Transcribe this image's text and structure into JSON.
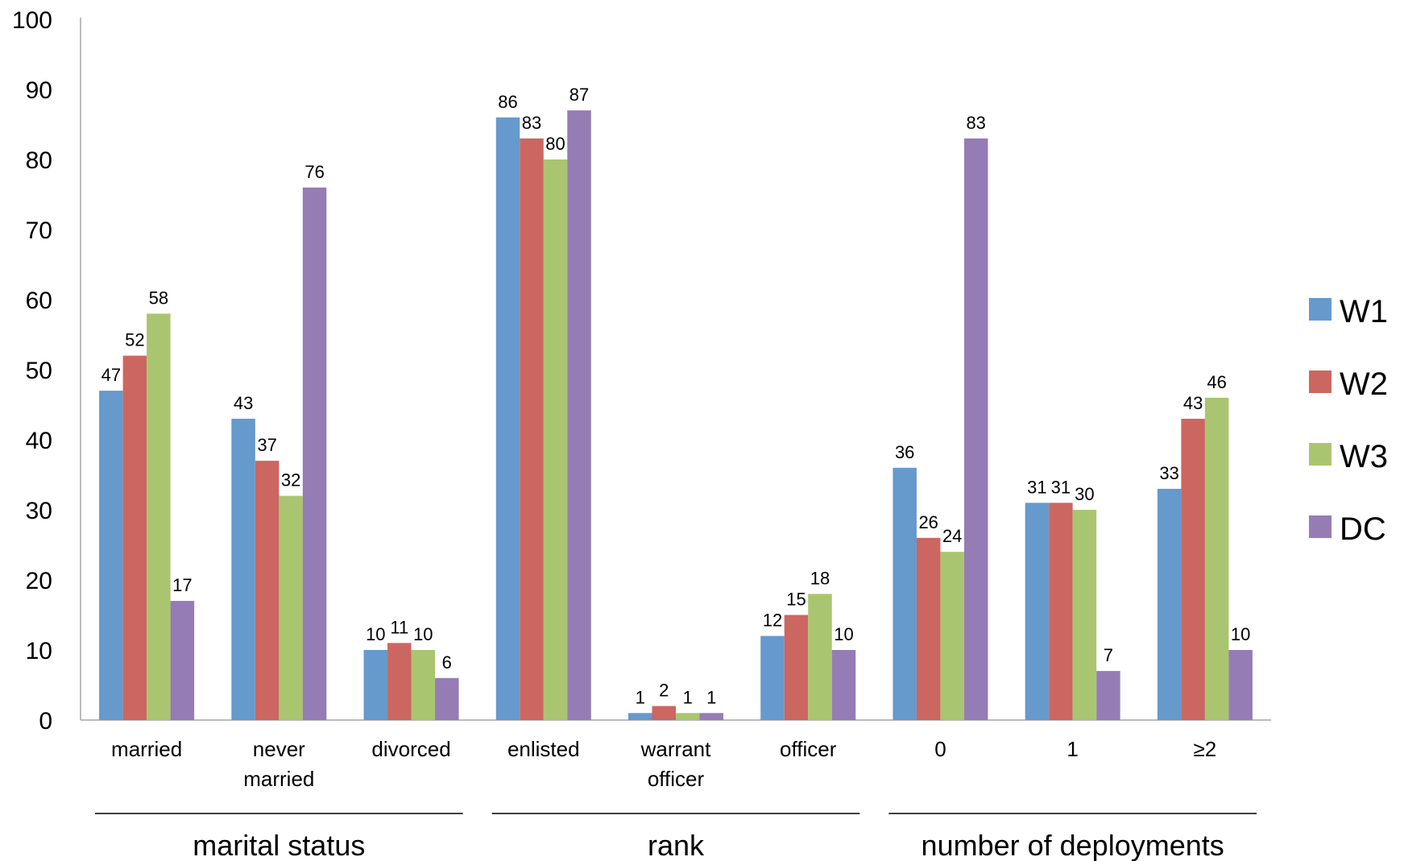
{
  "chart_data": {
    "type": "bar",
    "categories": [
      [
        "married"
      ],
      [
        "never",
        "married"
      ],
      [
        "divorced"
      ],
      [
        "enlisted"
      ],
      [
        "warrant",
        "officer"
      ],
      [
        "officer"
      ],
      [
        "0"
      ],
      [
        "1"
      ],
      [
        "≥2"
      ]
    ],
    "groups": [
      {
        "label": "marital status",
        "categories": [
          0,
          1,
          2
        ]
      },
      {
        "label": "rank",
        "categories": [
          3,
          4,
          5
        ]
      },
      {
        "label": "number of deployments",
        "categories": [
          6,
          7,
          8
        ]
      }
    ],
    "series": [
      {
        "name": "W1",
        "color": "#6699CC",
        "values": [
          47,
          43,
          10,
          86,
          1,
          12,
          36,
          31,
          33
        ],
        "value_labels": [
          "47",
          "43",
          "10",
          "86",
          "1",
          "12",
          "36",
          "31",
          "33"
        ]
      },
      {
        "name": "W2",
        "color": "#CC6660",
        "values": [
          52,
          37,
          11,
          83,
          2,
          15,
          26,
          31,
          43
        ],
        "value_labels": [
          "52",
          "37",
          "11",
          "83",
          "2",
          "15",
          "26",
          "31",
          "43"
        ]
      },
      {
        "name": "W3",
        "color": "#AAC56F",
        "values": [
          58,
          32,
          10,
          80,
          1,
          18,
          24,
          30,
          46
        ],
        "value_labels": [
          "58",
          "32",
          "10",
          "80",
          "1",
          "18",
          "24",
          "30",
          "46"
        ]
      },
      {
        "name": "DC",
        "color": "#957CB4",
        "values": [
          17,
          76,
          6,
          87,
          1,
          10,
          83,
          7,
          10
        ],
        "value_labels": [
          "17",
          "76",
          "6",
          "87",
          "1",
          "10",
          "83",
          "7",
          "10"
        ]
      }
    ],
    "ylim": [
      0,
      100
    ],
    "yticks": [
      "0",
      "10",
      "20",
      "30",
      "40",
      "50",
      "60",
      "70",
      "80",
      "90",
      "100"
    ],
    "grid": false,
    "legend_position": "right"
  }
}
